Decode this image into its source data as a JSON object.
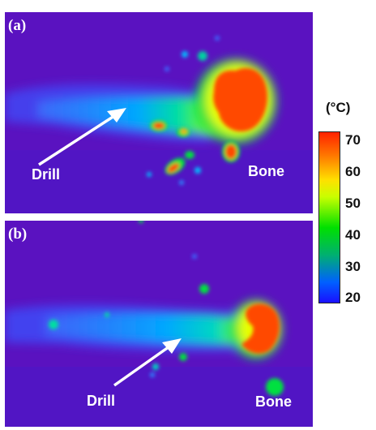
{
  "panels": [
    {
      "label": "(a)",
      "drill_label": "Drill",
      "bone_label": "Bone"
    },
    {
      "label": "(b)",
      "drill_label": "Drill",
      "bone_label": "Bone"
    }
  ],
  "colorbar": {
    "unit": "(°C)",
    "ticks": [
      "70",
      "60",
      "50",
      "40",
      "30",
      "20"
    ],
    "colors": [
      "#ff2200",
      "#ff7a00",
      "#ffe000",
      "#00e000",
      "#00b070",
      "#1a10ff"
    ]
  },
  "colors": {
    "background_field": "#5a12c0",
    "hot": "#ff4a00"
  }
}
